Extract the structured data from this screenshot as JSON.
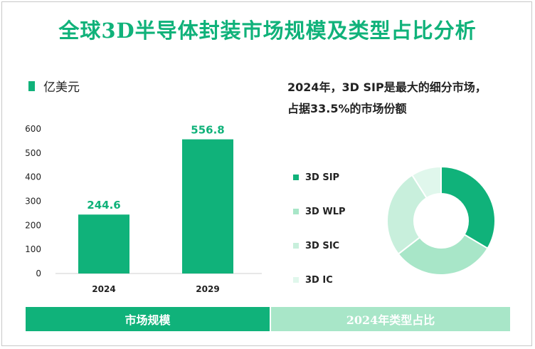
{
  "title": "全球3D半导体封装市场规模及类型占比分析",
  "unit_label": "亿美元",
  "annotation_line1": "2024年，3D SIP是最大的细分市场，",
  "annotation_line2": "占据33.5%的市场份额",
  "footer": {
    "left_label": "市场规模",
    "right_label": "2024年类型占比"
  },
  "colors": {
    "primary": "#10b27a",
    "light1": "#a8e6c8",
    "light2": "#c8efdc",
    "light3": "#e0f7ec"
  },
  "chart_data": [
    {
      "type": "bar",
      "categories": [
        "2024",
        "2029"
      ],
      "values": [
        244.6,
        556.8
      ],
      "ylim": [
        0,
        600
      ],
      "yticks": [
        0,
        100,
        200,
        300,
        400,
        500,
        600
      ],
      "data_labels": [
        "244.6",
        "556.8"
      ],
      "grid": false
    },
    {
      "type": "pie",
      "donut": true,
      "labels": [
        "3D SIP",
        "3D WLP",
        "3D SIC",
        "3D IC"
      ],
      "values": [
        33.5,
        31,
        26.5,
        9
      ],
      "colors": [
        "#10b27a",
        "#a8e6c8",
        "#c8efdc",
        "#e0f7ec"
      ],
      "legend": "left"
    }
  ]
}
